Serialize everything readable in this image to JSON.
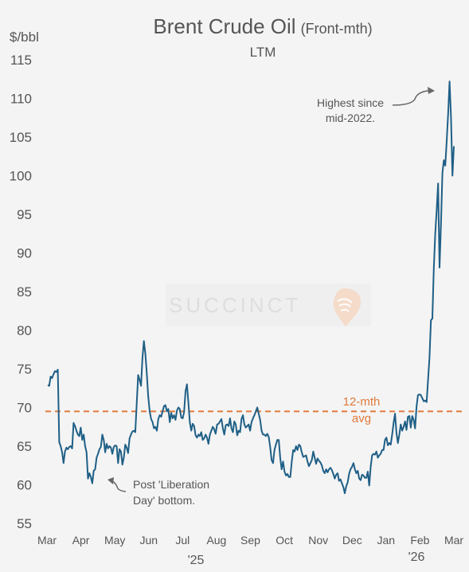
{
  "chart_data": {
    "type": "line",
    "title": "Brent Crude Oil",
    "title_suffix": "(Front-mth)",
    "subtitle": "LTM",
    "ylabel": "$/bbl",
    "ylim": [
      55,
      115
    ],
    "yticks": [
      55,
      60,
      65,
      70,
      75,
      80,
      85,
      90,
      95,
      100,
      105,
      110,
      115
    ],
    "x_tick_labels": [
      "Mar",
      "Apr",
      "May",
      "Jun",
      "Jul",
      "Aug",
      "Sep",
      "Oct",
      "Nov",
      "Dec",
      "Jan",
      "Feb",
      "Mar"
    ],
    "year_labels": [
      "'25",
      "'26"
    ],
    "grid": false,
    "series": [
      {
        "color": "#1f5f86",
        "values": [
          72.9,
          72.8,
          74.0,
          73.8,
          74.3,
          74.7,
          74.6,
          74.9,
          65.5,
          65.0,
          64.2,
          62.8,
          64.3,
          64.8,
          64.6,
          64.9,
          65.0,
          64.7,
          68.0,
          67.6,
          67.0,
          66.5,
          66.3,
          67.4,
          65.8,
          66.5,
          65.0,
          64.2,
          60.8,
          61.5,
          61.0,
          60.2,
          61.8,
          62.0,
          63.5,
          64.0,
          64.6,
          64.9,
          66.5,
          65.8,
          64.2,
          65.3,
          64.7,
          65.0,
          64.8,
          64.0,
          64.9,
          65.1,
          65.0,
          62.8,
          64.6,
          64.3,
          62.6,
          63.5,
          65.2,
          64.8,
          64.1,
          66.0,
          66.5,
          66.9,
          67.0,
          66.8,
          70.5,
          74.2,
          73.6,
          72.8,
          76.4,
          78.6,
          77.0,
          74.5,
          71.5,
          69.5,
          68.5,
          68.1,
          67.3,
          67.5,
          67.0,
          68.5,
          69.0,
          68.8,
          69.5,
          70.2,
          70.3,
          69.5,
          69.8,
          68.1,
          69.3,
          68.6,
          69.0,
          68.4,
          69.6,
          70.0,
          69.8,
          68.7,
          68.6,
          69.4,
          72.1,
          73.0,
          70.6,
          68.1,
          67.0,
          67.9,
          67.6,
          66.4,
          66.1,
          66.5,
          66.3,
          66.8,
          65.8,
          66.0,
          66.5,
          66.1,
          65.3,
          66.5,
          67.0,
          67.5,
          67.2,
          66.6,
          67.8,
          67.9,
          68.2,
          68.5,
          67.3,
          66.5,
          67.7,
          67.8,
          67.6,
          68.6,
          67.3,
          66.8,
          68.2,
          67.8,
          66.4,
          67.0,
          66.8,
          68.5,
          69.0,
          67.8,
          67.4,
          67.6,
          67.8,
          67.0,
          68.1,
          68.6,
          69.0,
          69.5,
          70.0,
          69.2,
          68.4,
          67.0,
          66.5,
          66.5,
          66.3,
          66.6,
          66.2,
          64.9,
          63.2,
          62.8,
          64.5,
          65.2,
          65.8,
          65.8,
          63.5,
          62.0,
          63.0,
          61.7,
          61.2,
          61.4,
          61.0,
          61.0,
          63.0,
          64.5,
          64.3,
          65.0,
          64.5,
          65.2,
          65.0,
          64.2,
          63.6,
          63.7,
          63.8,
          63.0,
          62.4,
          62.8,
          63.2,
          64.3,
          63.5,
          62.7,
          63.4,
          63.1,
          62.9,
          62.5,
          61.8,
          61.5,
          62.0,
          61.6,
          62.0,
          62.2,
          61.9,
          61.4,
          60.8,
          61.3,
          61.5,
          60.5,
          60.7,
          60.2,
          59.7,
          58.9,
          59.8,
          60.3,
          61.4,
          62.0,
          62.3,
          62.8,
          62.0,
          61.5,
          61.8,
          60.8,
          60.6,
          61.3,
          61.2,
          60.9,
          60.9,
          61.7,
          59.9,
          62.3,
          63.8,
          64.0,
          63.9,
          64.3,
          63.5,
          63.8,
          64.0,
          64.5,
          64.5,
          65.8,
          66.1,
          65.1,
          65.4,
          65.2,
          66.5,
          68.0,
          69.2,
          66.7,
          65.4,
          66.5,
          67.8,
          67.0,
          67.5,
          68.2,
          67.1,
          68.8,
          68.9,
          67.4,
          68.9,
          68.4,
          67.3,
          70.1,
          71.6,
          71.7,
          71.6,
          71.2,
          70.8,
          70.9,
          70.7,
          73.6,
          76.5,
          81.3,
          81.5,
          88.0,
          92.5,
          95.5,
          99.0,
          88.1,
          93.7,
          100.3,
          102.0,
          101.3,
          104.5,
          108.0,
          112.2,
          107.6,
          100.0,
          103.8
        ]
      }
    ],
    "average": {
      "value": 69.5,
      "label_line1": "12-mth",
      "label_line2": "avg",
      "color": "#e07a3c"
    },
    "annotations": [
      {
        "line1": "Highest since",
        "line2": "mid-2022."
      },
      {
        "line1": "Post 'Liberation",
        "line2": "Day' bottom."
      }
    ],
    "watermark": "SUCCINCT"
  }
}
